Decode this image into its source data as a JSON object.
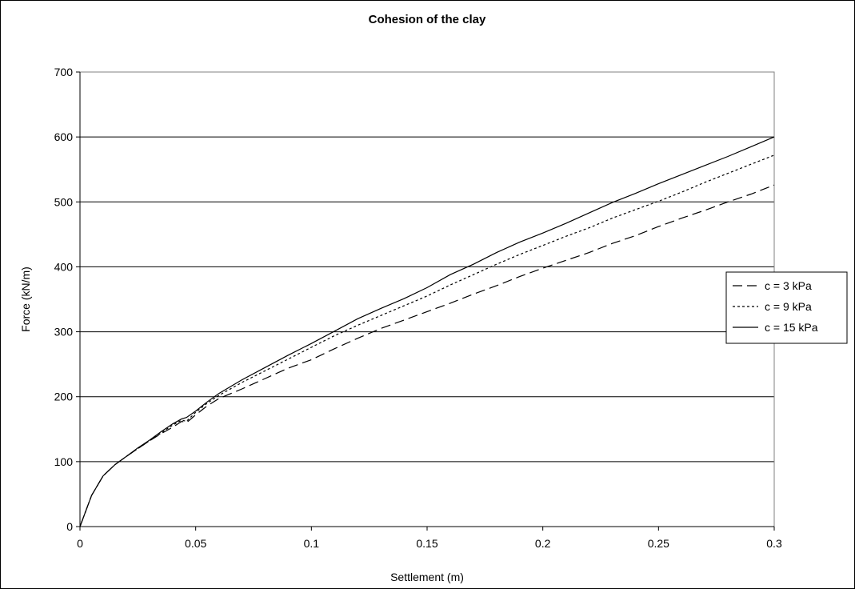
{
  "chart_data": {
    "type": "line",
    "title": "Cohesion of the clay",
    "xlabel": "Settlement (m)",
    "ylabel": "Force (kN/m)",
    "xlim": [
      0,
      0.3
    ],
    "ylim": [
      0,
      700
    ],
    "x_ticks": [
      "0",
      "0.05",
      "0.1",
      "0.15",
      "0.2",
      "0.25",
      "0.3"
    ],
    "x_tick_values": [
      0,
      0.05,
      0.1,
      0.15,
      0.2,
      0.25,
      0.3
    ],
    "y_ticks": [
      "0",
      "100",
      "200",
      "300",
      "400",
      "500",
      "600",
      "700"
    ],
    "y_tick_values": [
      0,
      100,
      200,
      300,
      400,
      500,
      600,
      700
    ],
    "grid": "horizontal",
    "legend_position": "right",
    "series": [
      {
        "name": "c = 3 kPa",
        "style": "dashed",
        "color": "#000000",
        "x": [
          0,
          0.005,
          0.01,
          0.015,
          0.02,
          0.025,
          0.03,
          0.035,
          0.04,
          0.044,
          0.046,
          0.05,
          0.055,
          0.06,
          0.07,
          0.08,
          0.09,
          0.1,
          0.11,
          0.12,
          0.13,
          0.14,
          0.15,
          0.16,
          0.17,
          0.18,
          0.19,
          0.2,
          0.21,
          0.22,
          0.23,
          0.24,
          0.25,
          0.26,
          0.27,
          0.28,
          0.29,
          0.3
        ],
        "y": [
          0,
          48,
          78,
          95,
          108,
          120,
          132,
          143,
          153,
          162,
          160,
          172,
          186,
          197,
          212,
          228,
          244,
          257,
          274,
          290,
          305,
          318,
          331,
          344,
          358,
          371,
          385,
          398,
          410,
          422,
          436,
          448,
          462,
          475,
          487,
          500,
          512,
          526
        ]
      },
      {
        "name": "c = 9 kPa",
        "style": "dotted",
        "color": "#000000",
        "x": [
          0,
          0.005,
          0.01,
          0.015,
          0.02,
          0.025,
          0.03,
          0.035,
          0.04,
          0.044,
          0.046,
          0.05,
          0.055,
          0.06,
          0.07,
          0.08,
          0.09,
          0.1,
          0.11,
          0.12,
          0.13,
          0.14,
          0.15,
          0.16,
          0.17,
          0.18,
          0.19,
          0.2,
          0.21,
          0.22,
          0.23,
          0.24,
          0.25,
          0.26,
          0.27,
          0.28,
          0.29,
          0.3
        ],
        "y": [
          0,
          48,
          78,
          95,
          108,
          120,
          132,
          144,
          156,
          164,
          162,
          176,
          190,
          202,
          222,
          240,
          258,
          276,
          294,
          310,
          325,
          340,
          355,
          372,
          388,
          404,
          419,
          433,
          447,
          460,
          475,
          488,
          501,
          515,
          530,
          544,
          558,
          572
        ]
      },
      {
        "name": "c = 15 kPa",
        "style": "solid",
        "color": "#000000",
        "x": [
          0,
          0.005,
          0.01,
          0.015,
          0.02,
          0.025,
          0.03,
          0.035,
          0.04,
          0.044,
          0.046,
          0.05,
          0.055,
          0.06,
          0.07,
          0.08,
          0.09,
          0.1,
          0.11,
          0.12,
          0.13,
          0.14,
          0.15,
          0.16,
          0.17,
          0.18,
          0.19,
          0.2,
          0.21,
          0.22,
          0.23,
          0.24,
          0.25,
          0.26,
          0.27,
          0.28,
          0.29,
          0.3
        ],
        "y": [
          0,
          48,
          78,
          95,
          108,
          121,
          133,
          146,
          158,
          166,
          168,
          178,
          192,
          205,
          226,
          245,
          264,
          282,
          301,
          320,
          336,
          351,
          368,
          388,
          404,
          422,
          438,
          452,
          467,
          483,
          499,
          513,
          528,
          542,
          556,
          570,
          585,
          600
        ]
      }
    ]
  }
}
